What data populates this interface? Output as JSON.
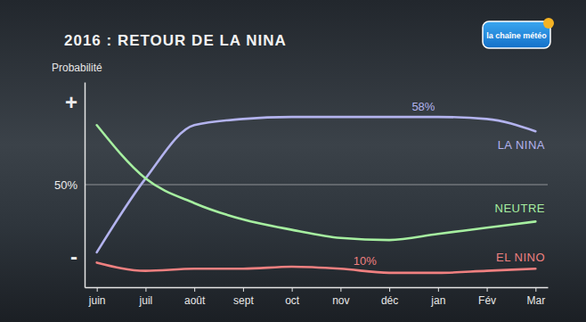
{
  "chart_data": {
    "type": "line",
    "title": "2016 : RETOUR DE LA NINA",
    "source": "la chaîne météo",
    "y_label": "Probabilité",
    "categories": [
      "juin",
      "juil",
      "août",
      "sept",
      "oct",
      "nov",
      "déc",
      "jan",
      "Fév",
      "Mar"
    ],
    "series": [
      {
        "name": "LA NINA",
        "color": "#b3b3ee",
        "values": [
          17,
          53,
          79,
          82,
          83,
          83,
          83,
          83,
          82,
          76
        ]
      },
      {
        "name": "NEUTRE",
        "color": "#a6efa0",
        "values": [
          79,
          53,
          41,
          33,
          28,
          24,
          23,
          26,
          29,
          32
        ]
      },
      {
        "name": "EL NINO",
        "color": "#ef8080",
        "values": [
          12,
          8,
          9,
          9,
          10,
          9,
          7,
          7,
          8,
          9
        ]
      }
    ],
    "ylim": [
      0,
      100
    ],
    "yticks": [
      {
        "value": 15,
        "label": "-"
      },
      {
        "value": 50,
        "label": "50%"
      },
      {
        "value": 90,
        "label": "+"
      }
    ],
    "grid": true,
    "annotations": [
      "58%",
      "10%"
    ]
  }
}
